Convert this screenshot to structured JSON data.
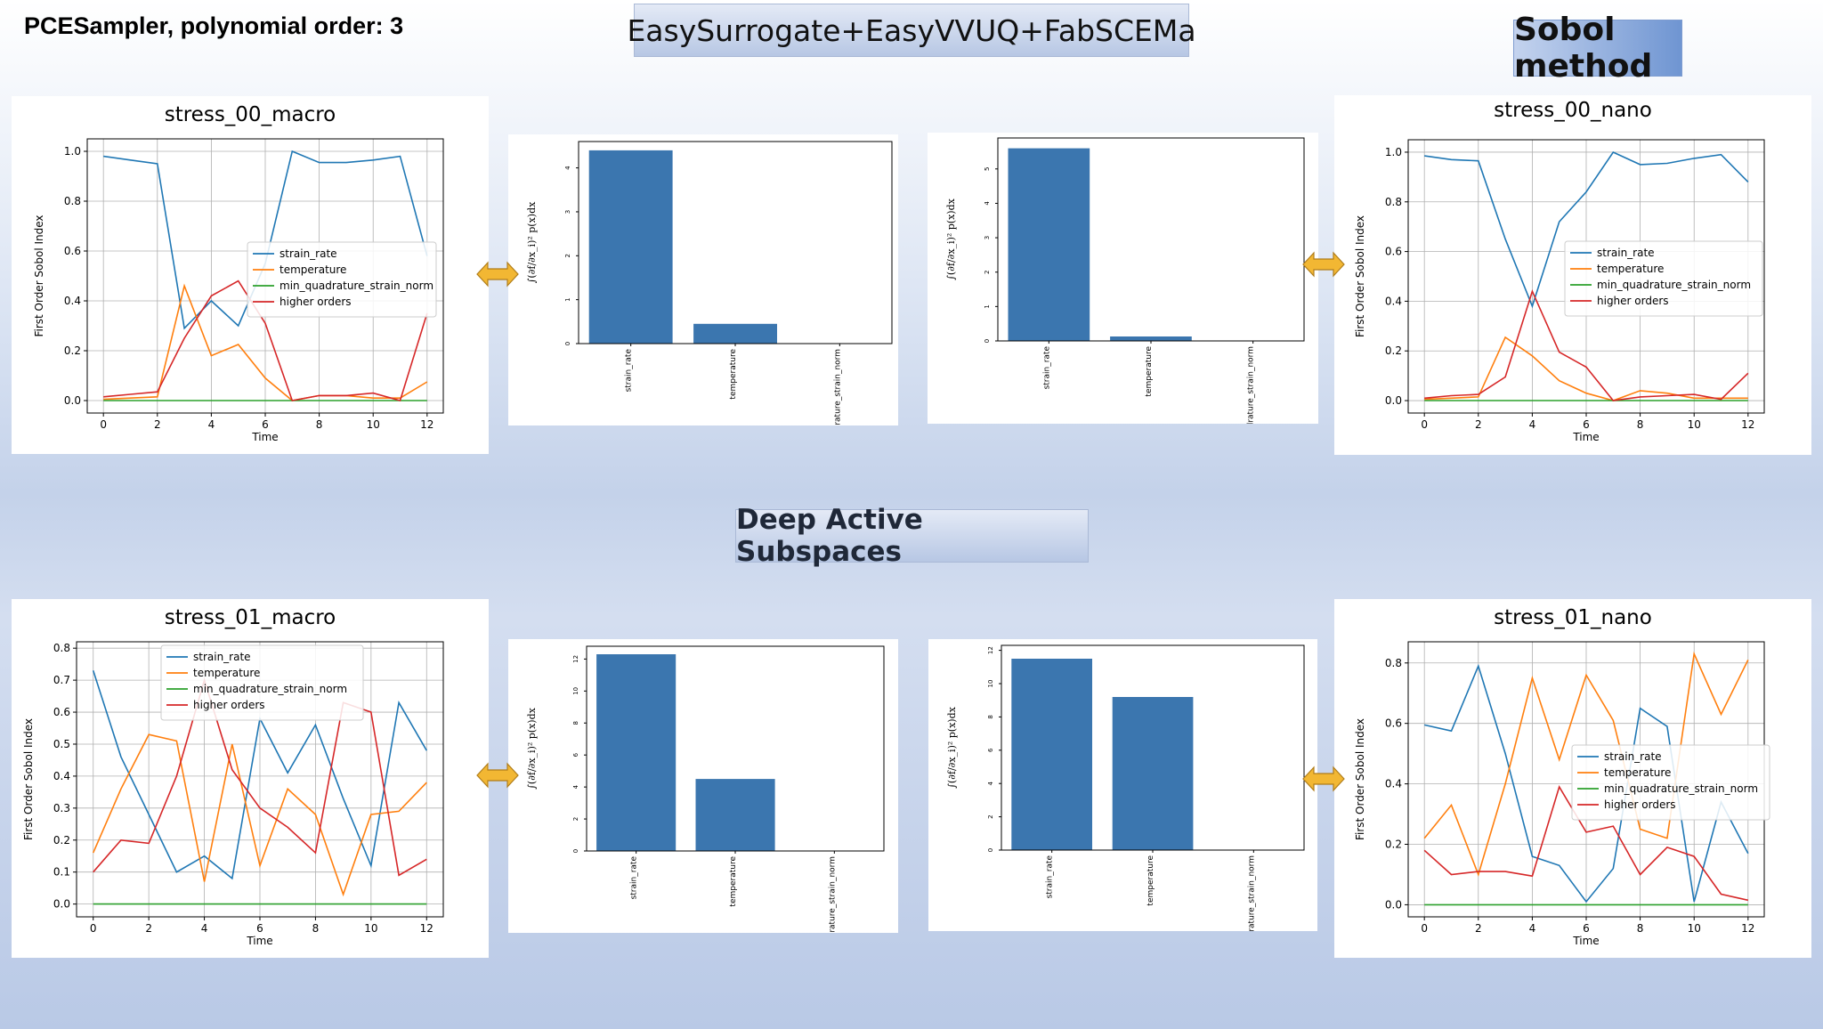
{
  "header": {
    "corner_title": "PCESampler, polynomial order: 3",
    "top_banner": "EasySurrogate+EasyVVUQ+FabSCEMa",
    "method_banner": "Sobol method",
    "middle_banner": "Deep Active Subspaces"
  },
  "colors": {
    "strain_rate": "#1f77b4",
    "temperature": "#ff7f0e",
    "min_quadrature_strain_norm": "#2ca02c",
    "higher_orders": "#d62728",
    "bar": "#3b76af",
    "arrow": "#f2b733"
  },
  "chart_data": [
    {
      "id": "stress00_macro",
      "type": "line",
      "title": "stress_00_macro",
      "xlabel": "Time",
      "ylabel": "First Order Sobol Index",
      "x": [
        0,
        1,
        2,
        3,
        4,
        5,
        6,
        7,
        8,
        9,
        10,
        11,
        12
      ],
      "xlim": [
        -0.6,
        12.6
      ],
      "ylim": [
        -0.05,
        1.05
      ],
      "xticks": [
        0,
        2,
        4,
        6,
        8,
        10,
        12
      ],
      "yticks": [
        0.0,
        0.2,
        0.4,
        0.6,
        0.8,
        1.0
      ],
      "ytick_labels": [
        "0.0",
        "0.2",
        "0.4",
        "0.6",
        "0.8",
        "1.0"
      ],
      "grid": true,
      "legend_position": "center-right",
      "series": [
        {
          "name": "strain_rate",
          "color": "#1f77b4",
          "values": [
            0.98,
            0.965,
            0.95,
            0.29,
            0.4,
            0.3,
            0.55,
            1.0,
            0.955,
            0.955,
            0.965,
            0.98,
            0.58
          ]
        },
        {
          "name": "temperature",
          "color": "#ff7f0e",
          "values": [
            0.005,
            0.01,
            0.015,
            0.46,
            0.18,
            0.225,
            0.09,
            0.0,
            0.02,
            0.02,
            0.01,
            0.01,
            0.075
          ]
        },
        {
          "name": "min_quadrature_strain_norm",
          "color": "#2ca02c",
          "values": [
            0.0,
            0.0,
            0.0,
            0.0,
            0.0,
            0.0,
            0.0,
            0.0,
            0.0,
            0.0,
            0.0,
            0.0,
            0.0
          ]
        },
        {
          "name": "higher orders",
          "color": "#d62728",
          "values": [
            0.015,
            0.025,
            0.035,
            0.25,
            0.42,
            0.48,
            0.31,
            0.0,
            0.02,
            0.02,
            0.03,
            0.0,
            0.35
          ]
        }
      ]
    },
    {
      "id": "stress00_nano",
      "type": "line",
      "title": "stress_00_nano",
      "xlabel": "Time",
      "ylabel": "First Order Sobol Index",
      "x": [
        0,
        1,
        2,
        3,
        4,
        5,
        6,
        7,
        8,
        9,
        10,
        11,
        12
      ],
      "xlim": [
        -0.6,
        12.6
      ],
      "ylim": [
        -0.05,
        1.05
      ],
      "xticks": [
        0,
        2,
        4,
        6,
        8,
        10,
        12
      ],
      "yticks": [
        0.0,
        0.2,
        0.4,
        0.6,
        0.8,
        1.0
      ],
      "ytick_labels": [
        "0.0",
        "0.2",
        "0.4",
        "0.6",
        "0.8",
        "1.0"
      ],
      "grid": true,
      "legend_position": "center-right",
      "series": [
        {
          "name": "strain_rate",
          "color": "#1f77b4",
          "values": [
            0.985,
            0.97,
            0.965,
            0.65,
            0.38,
            0.72,
            0.84,
            1.0,
            0.95,
            0.955,
            0.975,
            0.99,
            0.88
          ]
        },
        {
          "name": "temperature",
          "color": "#ff7f0e",
          "values": [
            0.005,
            0.01,
            0.015,
            0.255,
            0.18,
            0.08,
            0.03,
            0.0,
            0.04,
            0.03,
            0.01,
            0.01,
            0.01
          ]
        },
        {
          "name": "min_quadrature_strain_norm",
          "color": "#2ca02c",
          "values": [
            0.0,
            0.0,
            0.0,
            0.0,
            0.0,
            0.0,
            0.0,
            0.0,
            0.0,
            0.0,
            0.0,
            0.0,
            0.0
          ]
        },
        {
          "name": "higher orders",
          "color": "#d62728",
          "values": [
            0.01,
            0.02,
            0.025,
            0.095,
            0.44,
            0.195,
            0.135,
            0.0,
            0.015,
            0.02,
            0.025,
            0.005,
            0.11
          ]
        }
      ]
    },
    {
      "id": "stress01_macro",
      "type": "line",
      "title": "stress_01_macro",
      "xlabel": "Time",
      "ylabel": "First Order Sobol Index",
      "x": [
        0,
        1,
        2,
        3,
        4,
        5,
        6,
        7,
        8,
        9,
        10,
        11,
        12
      ],
      "xlim": [
        -0.6,
        12.6
      ],
      "ylim": [
        -0.04,
        0.82
      ],
      "xticks": [
        0,
        2,
        4,
        6,
        8,
        10,
        12
      ],
      "yticks": [
        0.0,
        0.1,
        0.2,
        0.3,
        0.4,
        0.5,
        0.6,
        0.7,
        0.8
      ],
      "ytick_labels": [
        "0.0",
        "0.1",
        "0.2",
        "0.3",
        "0.4",
        "0.5",
        "0.6",
        "0.7",
        "0.8"
      ],
      "grid": true,
      "legend_position": "upper-center",
      "series": [
        {
          "name": "strain_rate",
          "color": "#1f77b4",
          "values": [
            0.73,
            0.46,
            0.28,
            0.1,
            0.15,
            0.08,
            0.58,
            0.41,
            0.56,
            0.33,
            0.12,
            0.63,
            0.48
          ]
        },
        {
          "name": "temperature",
          "color": "#ff7f0e",
          "values": [
            0.16,
            0.36,
            0.53,
            0.51,
            0.07,
            0.5,
            0.12,
            0.36,
            0.28,
            0.03,
            0.28,
            0.29,
            0.38
          ]
        },
        {
          "name": "min_quadrature_strain_norm",
          "color": "#2ca02c",
          "values": [
            0.0,
            0.0,
            0.0,
            0.0,
            0.0,
            0.0,
            0.0,
            0.0,
            0.0,
            0.0,
            0.0,
            0.0,
            0.0
          ]
        },
        {
          "name": "higher orders",
          "color": "#d62728",
          "values": [
            0.1,
            0.2,
            0.19,
            0.4,
            0.7,
            0.42,
            0.3,
            0.24,
            0.16,
            0.63,
            0.6,
            0.09,
            0.14
          ]
        }
      ]
    },
    {
      "id": "stress01_nano",
      "type": "line",
      "title": "stress_01_nano",
      "xlabel": "Time",
      "ylabel": "First Order Sobol Index",
      "x": [
        0,
        1,
        2,
        3,
        4,
        5,
        6,
        7,
        8,
        9,
        10,
        11,
        12
      ],
      "xlim": [
        -0.6,
        12.6
      ],
      "ylim": [
        -0.04,
        0.87
      ],
      "xticks": [
        0,
        2,
        4,
        6,
        8,
        10,
        12
      ],
      "yticks": [
        0.0,
        0.2,
        0.4,
        0.6,
        0.8
      ],
      "ytick_labels": [
        "0.0",
        "0.2",
        "0.4",
        "0.6",
        "0.8"
      ],
      "grid": true,
      "legend_position": "center-right",
      "series": [
        {
          "name": "strain_rate",
          "color": "#1f77b4",
          "values": [
            0.595,
            0.575,
            0.79,
            0.5,
            0.16,
            0.13,
            0.01,
            0.12,
            0.65,
            0.59,
            0.01,
            0.34,
            0.17
          ]
        },
        {
          "name": "temperature",
          "color": "#ff7f0e",
          "values": [
            0.22,
            0.33,
            0.1,
            0.4,
            0.75,
            0.48,
            0.76,
            0.61,
            0.25,
            0.22,
            0.83,
            0.63,
            0.81
          ]
        },
        {
          "name": "min_quadrature_strain_norm",
          "color": "#2ca02c",
          "values": [
            0.0,
            0.0,
            0.0,
            0.0,
            0.0,
            0.0,
            0.0,
            0.0,
            0.0,
            0.0,
            0.0,
            0.0,
            0.0
          ]
        },
        {
          "name": "higher orders",
          "color": "#d62728",
          "values": [
            0.18,
            0.1,
            0.11,
            0.11,
            0.095,
            0.39,
            0.24,
            0.26,
            0.1,
            0.19,
            0.16,
            0.035,
            0.015
          ]
        }
      ]
    },
    {
      "id": "das_bar_00_macro",
      "type": "bar",
      "ylabel": "∫(∂f/∂x_i)² p(x)dx",
      "categories": [
        "strain_rate",
        "temperature",
        "min_quadrature_strain_norm"
      ],
      "values": [
        4.4,
        0.45,
        0.0
      ],
      "ylim": [
        0,
        4.6
      ],
      "yticks": [
        0,
        1,
        2,
        3,
        4
      ],
      "ytick_labels": [
        "0",
        "1",
        "2",
        "3",
        "4"
      ]
    },
    {
      "id": "das_bar_00_nano",
      "type": "bar",
      "ylabel": "∫(∂f/∂x_i)² p(x)dx",
      "categories": [
        "strain_rate",
        "temperature",
        "min_quadrature_strain_norm"
      ],
      "values": [
        5.6,
        0.13,
        0.0
      ],
      "ylim": [
        0,
        5.9
      ],
      "yticks": [
        0,
        1,
        2,
        3,
        4,
        5
      ],
      "ytick_labels": [
        "0",
        "1",
        "2",
        "3",
        "4",
        "5"
      ]
    },
    {
      "id": "das_bar_01_macro",
      "type": "bar",
      "ylabel": "∫(∂f/∂x_i)² p(x)dx",
      "categories": [
        "strain_rate",
        "temperature",
        "min_quadrature_strain_norm"
      ],
      "values": [
        12.3,
        4.5,
        0.0
      ],
      "ylim": [
        0,
        12.8
      ],
      "yticks": [
        0,
        2,
        4,
        6,
        8,
        10,
        12
      ],
      "ytick_labels": [
        "0",
        "2",
        "4",
        "6",
        "8",
        "10",
        "12"
      ]
    },
    {
      "id": "das_bar_01_nano",
      "type": "bar",
      "ylabel": "∫(∂f/∂x_i)² p(x)dx",
      "categories": [
        "strain_rate",
        "temperature",
        "min_quadrature_strain_norm"
      ],
      "values": [
        11.5,
        9.2,
        0.0
      ],
      "ylim": [
        0,
        12.3
      ],
      "yticks": [
        0,
        2,
        4,
        6,
        8,
        10,
        12
      ],
      "ytick_labels": [
        "0",
        "2",
        "4",
        "6",
        "8",
        "10",
        "12"
      ]
    }
  ]
}
